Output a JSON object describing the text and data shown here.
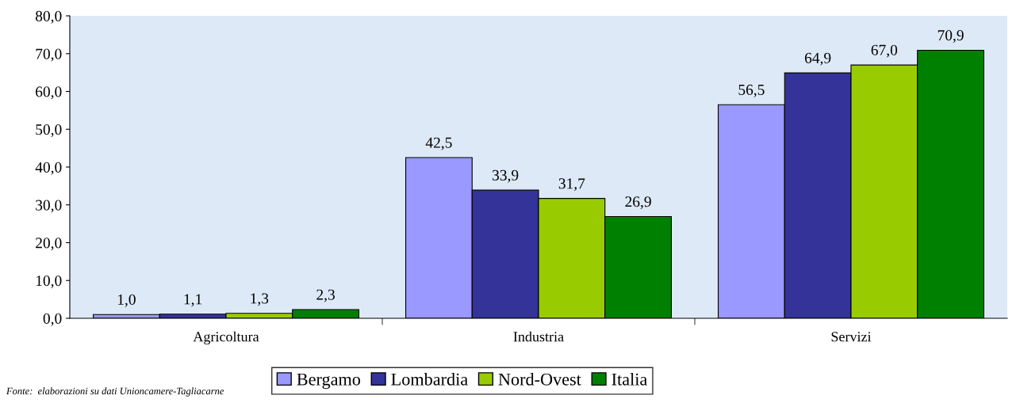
{
  "chart_data": {
    "type": "bar",
    "categories": [
      "Agricoltura",
      "Industria",
      "Servizi"
    ],
    "series": [
      {
        "name": "Bergamo",
        "color": "#9999ff",
        "values": [
          1.0,
          42.5,
          56.5
        ],
        "value_labels": [
          "1,0",
          "42,5",
          "56,5"
        ]
      },
      {
        "name": "Lombardia",
        "color": "#333399",
        "values": [
          1.1,
          33.9,
          64.9
        ],
        "value_labels": [
          "1,1",
          "33,9",
          "64,9"
        ]
      },
      {
        "name": "Nord-Ovest",
        "color": "#99cc00",
        "values": [
          1.3,
          31.7,
          67.0
        ],
        "value_labels": [
          "1,3",
          "31,7",
          "67,0"
        ]
      },
      {
        "name": "Italia",
        "color": "#008000",
        "values": [
          2.3,
          26.9,
          70.9
        ],
        "value_labels": [
          "2,3",
          "26,9",
          "70,9"
        ]
      }
    ],
    "ylim": [
      0,
      80
    ],
    "yticks": [
      {
        "value": 0,
        "label": "0,0"
      },
      {
        "value": 10,
        "label": "10,0"
      },
      {
        "value": 20,
        "label": "20,0"
      },
      {
        "value": 30,
        "label": "30,0"
      },
      {
        "value": 40,
        "label": "40,0"
      },
      {
        "value": 50,
        "label": "50,0"
      },
      {
        "value": 60,
        "label": "60,0"
      },
      {
        "value": 70,
        "label": "70,0"
      },
      {
        "value": 80,
        "label": "80,0"
      }
    ],
    "grid": false,
    "legend": "bottom",
    "annotations": [
      "Fonte:  elaborazioni su dati Unioncamere-Tagliacarne"
    ]
  }
}
